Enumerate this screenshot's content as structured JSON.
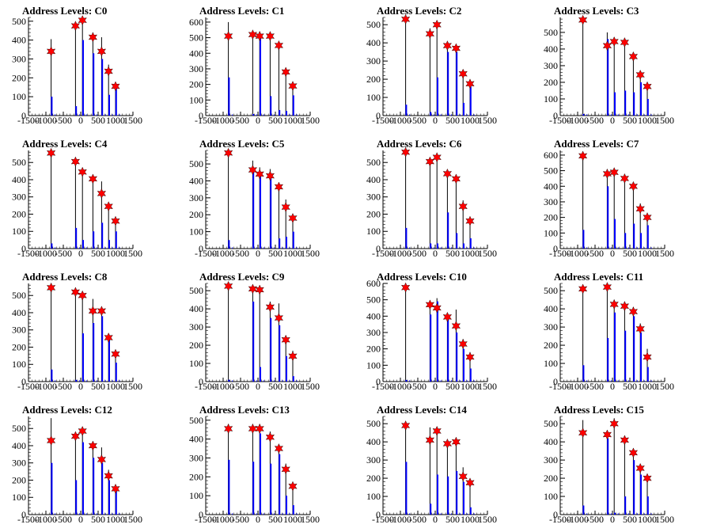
{
  "colors": {
    "black_bar": "#000000",
    "blue_bar": "#0000ff",
    "marker": "#ff0000",
    "marker_edge": "#000000",
    "axis": "#000000"
  },
  "chart_data": [
    {
      "type": "bar",
      "title": "Address Levels: C0",
      "xlim": [
        -1500,
        1500
      ],
      "ylim": [
        0,
        520
      ],
      "yticks": [
        0,
        100,
        200,
        300,
        400,
        500
      ],
      "xticks": [
        -1500,
        -1000,
        -500,
        0,
        500,
        1000,
        1500
      ],
      "x": [
        -850,
        -150,
        50,
        350,
        600,
        800,
        1000
      ],
      "series": [
        {
          "kind": "black-bar",
          "values": [
            405,
            495,
            520,
            440,
            415,
            270,
            175
          ]
        },
        {
          "kind": "blue-bar",
          "values": [
            100,
            50,
            400,
            330,
            300,
            110,
            150
          ]
        },
        {
          "kind": "marker",
          "values": [
            340,
            475,
            505,
            415,
            340,
            235,
            155
          ]
        }
      ]
    },
    {
      "type": "bar",
      "title": "Address Levels: C1",
      "xlim": [
        -1500,
        1500
      ],
      "ylim": [
        0,
        630
      ],
      "yticks": [
        0,
        100,
        200,
        300,
        400,
        500,
        600
      ],
      "xticks": [
        -1500,
        -1000,
        -500,
        0,
        500,
        1000,
        1500
      ],
      "x": [
        -850,
        -150,
        50,
        350,
        600,
        800,
        1000
      ],
      "series": [
        {
          "kind": "black-bar",
          "values": [
            600,
            525,
            540,
            525,
            460,
            300,
            200
          ]
        },
        {
          "kind": "blue-bar",
          "values": [
            245,
            10,
            525,
            125,
            35,
            30,
            130
          ]
        },
        {
          "kind": "marker",
          "values": [
            510,
            520,
            510,
            510,
            450,
            280,
            190
          ]
        }
      ]
    },
    {
      "type": "bar",
      "title": "Address Levels: C2",
      "xlim": [
        -1500,
        1500
      ],
      "ylim": [
        0,
        540
      ],
      "yticks": [
        0,
        100,
        200,
        300,
        400,
        500
      ],
      "xticks": [
        -1500,
        -1000,
        -500,
        0,
        500,
        1000,
        1500
      ],
      "x": [
        -850,
        -150,
        50,
        350,
        600,
        800,
        1000
      ],
      "series": [
        {
          "kind": "black-bar",
          "values": [
            540,
            480,
            510,
            400,
            380,
            240,
            180
          ]
        },
        {
          "kind": "blue-bar",
          "values": [
            60,
            20,
            210,
            350,
            350,
            70,
            160
          ]
        },
        {
          "kind": "marker",
          "values": [
            530,
            450,
            500,
            385,
            370,
            230,
            175
          ]
        }
      ]
    },
    {
      "type": "bar",
      "title": "Address Levels: C3",
      "xlim": [
        -1500,
        1500
      ],
      "ylim": [
        0,
        590
      ],
      "yticks": [
        0,
        100,
        200,
        300,
        400,
        500
      ],
      "xticks": [
        -1500,
        -1000,
        -500,
        0,
        500,
        1000,
        1500
      ],
      "x": [
        -850,
        -150,
        50,
        350,
        600,
        800,
        1000
      ],
      "series": [
        {
          "kind": "black-bar",
          "values": [
            580,
            500,
            470,
            460,
            380,
            260,
            190
          ]
        },
        {
          "kind": "blue-bar",
          "values": [
            10,
            460,
            140,
            150,
            140,
            200,
            100
          ]
        },
        {
          "kind": "marker",
          "values": [
            575,
            420,
            445,
            440,
            355,
            245,
            175
          ]
        }
      ]
    },
    {
      "type": "bar",
      "title": "Address Levels: C4",
      "xlim": [
        -1500,
        1500
      ],
      "ylim": [
        0,
        570
      ],
      "yticks": [
        0,
        100,
        200,
        300,
        400,
        500
      ],
      "xticks": [
        -1500,
        -1000,
        -500,
        0,
        500,
        1000,
        1500
      ],
      "x": [
        -850,
        -150,
        50,
        350,
        600,
        800,
        1000
      ],
      "series": [
        {
          "kind": "black-bar",
          "values": [
            570,
            510,
            460,
            420,
            390,
            260,
            170
          ]
        },
        {
          "kind": "blue-bar",
          "values": [
            30,
            120,
            50,
            100,
            150,
            50,
            100
          ]
        },
        {
          "kind": "marker",
          "values": [
            555,
            505,
            445,
            405,
            320,
            245,
            160
          ]
        }
      ]
    },
    {
      "type": "bar",
      "title": "Address Levels: C5",
      "xlim": [
        -1500,
        1500
      ],
      "ylim": [
        0,
        580
      ],
      "yticks": [
        0,
        100,
        200,
        300,
        400,
        500
      ],
      "xticks": [
        -1500,
        -1000,
        -500,
        0,
        500,
        1000,
        1500
      ],
      "x": [
        -850,
        -150,
        50,
        350,
        600,
        800,
        1000
      ],
      "series": [
        {
          "kind": "black-bar",
          "values": [
            580,
            520,
            480,
            470,
            370,
            290,
            200
          ]
        },
        {
          "kind": "blue-bar",
          "values": [
            50,
            470,
            430,
            440,
            60,
            70,
            100
          ]
        },
        {
          "kind": "marker",
          "values": [
            565,
            465,
            440,
            430,
            365,
            245,
            180
          ]
        }
      ]
    },
    {
      "type": "bar",
      "title": "Address Levels: C6",
      "xlim": [
        -1500,
        1500
      ],
      "ylim": [
        0,
        570
      ],
      "yticks": [
        0,
        100,
        200,
        300,
        400,
        500
      ],
      "xticks": [
        -1500,
        -1000,
        -500,
        0,
        500,
        1000,
        1500
      ],
      "x": [
        -850,
        -150,
        50,
        350,
        600,
        800,
        1000
      ],
      "series": [
        {
          "kind": "black-bar",
          "values": [
            570,
            520,
            540,
            450,
            420,
            280,
            180
          ]
        },
        {
          "kind": "blue-bar",
          "values": [
            120,
            30,
            30,
            210,
            90,
            30,
            60
          ]
        },
        {
          "kind": "marker",
          "values": [
            560,
            505,
            530,
            435,
            405,
            245,
            160
          ]
        }
      ]
    },
    {
      "type": "bar",
      "title": "Address Levels: C7",
      "xlim": [
        -1500,
        1500
      ],
      "ylim": [
        0,
        630
      ],
      "yticks": [
        0,
        100,
        200,
        300,
        400,
        500,
        600
      ],
      "xticks": [
        -1500,
        -1000,
        -500,
        0,
        500,
        1000,
        1500
      ],
      "x": [
        -850,
        -150,
        50,
        350,
        600,
        800,
        1000
      ],
      "series": [
        {
          "kind": "black-bar",
          "values": [
            610,
            510,
            500,
            470,
            410,
            290,
            210
          ]
        },
        {
          "kind": "blue-bar",
          "values": [
            120,
            400,
            190,
            100,
            160,
            100,
            150
          ]
        },
        {
          "kind": "marker",
          "values": [
            595,
            480,
            490,
            450,
            400,
            255,
            200
          ]
        }
      ]
    },
    {
      "type": "bar",
      "title": "Address Levels: C8",
      "xlim": [
        -1500,
        1500
      ],
      "ylim": [
        0,
        570
      ],
      "yticks": [
        0,
        100,
        200,
        300,
        400,
        500
      ],
      "xticks": [
        -1500,
        -1000,
        -500,
        0,
        500,
        1000,
        1500
      ],
      "x": [
        -850,
        -150,
        50,
        350,
        600,
        800,
        1000
      ],
      "series": [
        {
          "kind": "black-bar",
          "values": [
            570,
            530,
            520,
            480,
            430,
            270,
            180
          ]
        },
        {
          "kind": "blue-bar",
          "values": [
            70,
            10,
            280,
            340,
            380,
            250,
            110
          ]
        },
        {
          "kind": "marker",
          "values": [
            545,
            520,
            500,
            410,
            410,
            255,
            160
          ]
        }
      ]
    },
    {
      "type": "bar",
      "title": "Address Levels: C9",
      "xlim": [
        -1500,
        1500
      ],
      "ylim": [
        0,
        540
      ],
      "yticks": [
        0,
        100,
        200,
        300,
        400,
        500
      ],
      "xticks": [
        -1500,
        -1000,
        -500,
        0,
        500,
        1000,
        1500
      ],
      "x": [
        -850,
        -150,
        50,
        350,
        600,
        800,
        1000
      ],
      "series": [
        {
          "kind": "black-bar",
          "values": [
            530,
            520,
            520,
            440,
            430,
            250,
            170
          ]
        },
        {
          "kind": "blue-bar",
          "values": [
            10,
            440,
            80,
            350,
            310,
            140,
            30
          ]
        },
        {
          "kind": "marker",
          "values": [
            525,
            510,
            505,
            410,
            350,
            230,
            140
          ]
        }
      ]
    },
    {
      "type": "bar",
      "title": "Address Levels: C10",
      "xlim": [
        -1500,
        1500
      ],
      "ylim": [
        0,
        600
      ],
      "yticks": [
        0,
        100,
        200,
        300,
        400,
        500,
        600
      ],
      "xticks": [
        -1500,
        -1000,
        -500,
        0,
        500,
        1000,
        1500
      ],
      "x": [
        -850,
        -150,
        50,
        350,
        600,
        800,
        1000
      ],
      "series": [
        {
          "kind": "black-bar",
          "values": [
            600,
            490,
            510,
            420,
            440,
            260,
            180
          ]
        },
        {
          "kind": "blue-bar",
          "values": [
            10,
            410,
            490,
            380,
            300,
            200,
            80
          ]
        },
        {
          "kind": "marker",
          "values": [
            575,
            470,
            450,
            395,
            340,
            230,
            150
          ]
        }
      ]
    },
    {
      "type": "bar",
      "title": "Address Levels: C11",
      "xlim": [
        -1500,
        1500
      ],
      "ylim": [
        0,
        540
      ],
      "yticks": [
        0,
        100,
        200,
        300,
        400,
        500
      ],
      "xticks": [
        -1500,
        -1000,
        -500,
        0,
        500,
        1000,
        1500
      ],
      "x": [
        -850,
        -150,
        50,
        350,
        600,
        800,
        1000
      ],
      "series": [
        {
          "kind": "black-bar",
          "values": [
            530,
            520,
            450,
            440,
            410,
            320,
            180
          ]
        },
        {
          "kind": "blue-bar",
          "values": [
            90,
            240,
            380,
            280,
            360,
            270,
            80
          ]
        },
        {
          "kind": "marker",
          "values": [
            510,
            520,
            425,
            415,
            385,
            290,
            135
          ]
        }
      ]
    },
    {
      "type": "bar",
      "title": "Address Levels: C12",
      "xlim": [
        -1500,
        1500
      ],
      "ylim": [
        0,
        570
      ],
      "yticks": [
        0,
        100,
        200,
        300,
        400,
        500
      ],
      "xticks": [
        -1500,
        -1000,
        -500,
        0,
        500,
        1000,
        1500
      ],
      "x": [
        -850,
        -150,
        50,
        350,
        600,
        800,
        1000
      ],
      "series": [
        {
          "kind": "black-bar",
          "values": [
            560,
            470,
            500,
            420,
            390,
            260,
            170
          ]
        },
        {
          "kind": "blue-bar",
          "values": [
            300,
            200,
            420,
            330,
            300,
            200,
            150
          ]
        },
        {
          "kind": "marker",
          "values": [
            430,
            455,
            485,
            400,
            320,
            225,
            150
          ]
        }
      ]
    },
    {
      "type": "bar",
      "title": "Address Levels: C13",
      "xlim": [
        -1500,
        1500
      ],
      "ylim": [
        0,
        520
      ],
      "yticks": [
        0,
        100,
        200,
        300,
        400,
        500
      ],
      "xticks": [
        -1500,
        -1000,
        -500,
        0,
        500,
        1000,
        1500
      ],
      "x": [
        -850,
        -150,
        50,
        350,
        600,
        800,
        1000
      ],
      "series": [
        {
          "kind": "black-bar",
          "values": [
            480,
            480,
            480,
            440,
            370,
            270,
            170
          ]
        },
        {
          "kind": "blue-bar",
          "values": [
            290,
            280,
            430,
            270,
            320,
            100,
            50
          ]
        },
        {
          "kind": "marker",
          "values": [
            455,
            455,
            455,
            410,
            350,
            240,
            150
          ]
        }
      ]
    },
    {
      "type": "bar",
      "title": "Address Levels: C14",
      "xlim": [
        -1500,
        1500
      ],
      "ylim": [
        0,
        540
      ],
      "yticks": [
        0,
        100,
        200,
        300,
        400,
        500
      ],
      "xticks": [
        -1500,
        -1000,
        -500,
        0,
        500,
        1000,
        1500
      ],
      "x": [
        -850,
        -150,
        50,
        350,
        600,
        800,
        1000
      ],
      "series": [
        {
          "kind": "black-bar",
          "values": [
            500,
            480,
            480,
            400,
            410,
            260,
            190
          ]
        },
        {
          "kind": "blue-bar",
          "values": [
            290,
            60,
            220,
            210,
            240,
            180,
            40
          ]
        },
        {
          "kind": "marker",
          "values": [
            490,
            410,
            460,
            390,
            400,
            210,
            175
          ]
        }
      ]
    },
    {
      "type": "bar",
      "title": "Address Levels: C15",
      "xlim": [
        -1500,
        1500
      ],
      "ylim": [
        0,
        540
      ],
      "yticks": [
        0,
        100,
        200,
        300,
        400,
        500
      ],
      "xticks": [
        -1500,
        -1000,
        -500,
        0,
        500,
        1000,
        1500
      ],
      "x": [
        -850,
        -150,
        50,
        350,
        600,
        800,
        1000
      ],
      "series": [
        {
          "kind": "black-bar",
          "values": [
            520,
            460,
            530,
            420,
            360,
            270,
            210
          ]
        },
        {
          "kind": "blue-bar",
          "values": [
            50,
            420,
            10,
            100,
            300,
            220,
            100
          ]
        },
        {
          "kind": "marker",
          "values": [
            450,
            440,
            500,
            410,
            340,
            255,
            200
          ]
        }
      ]
    }
  ]
}
